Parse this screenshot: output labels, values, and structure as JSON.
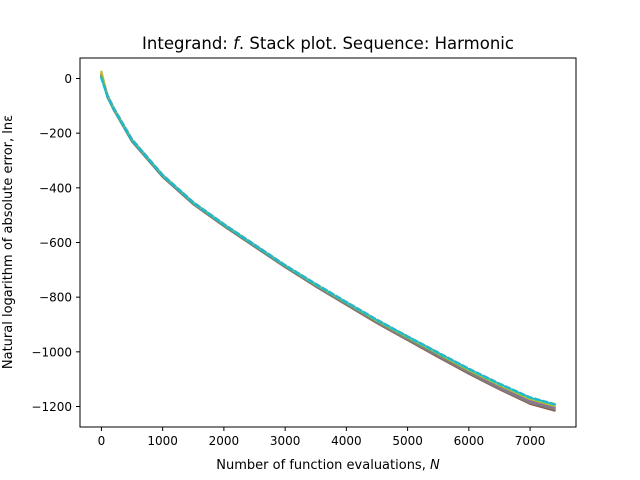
{
  "chart_data": {
    "type": "line",
    "title": "Integrand: f. Stack plot. Sequence: Harmonic",
    "title_parts": [
      "Integrand: ",
      "f",
      ". Stack plot. Sequence: Harmonic"
    ],
    "xlabel": "Number of function evaluations, ",
    "xlabel_var": "N",
    "ylabel": "Natural logarithm of absolute error, lnε",
    "xlim": [
      -350,
      7750
    ],
    "ylim": [
      -1275,
      75
    ],
    "xticks": [
      0,
      1000,
      2000,
      3000,
      4000,
      5000,
      6000,
      7000
    ],
    "yticks": [
      0,
      -200,
      -400,
      -600,
      -800,
      -1000,
      -1200
    ],
    "xtick_labels": [
      "0",
      "1000",
      "2000",
      "3000",
      "4000",
      "5000",
      "6000",
      "7000"
    ],
    "ytick_labels": [
      "0",
      "−200",
      "−400",
      "−600",
      "−800",
      "−1000",
      "−1200"
    ],
    "grid": false,
    "legend": "none",
    "x": [
      0,
      100,
      200,
      500,
      1000,
      1500,
      2000,
      2500,
      3000,
      3500,
      4000,
      4500,
      5000,
      5500,
      6000,
      6500,
      7000,
      7400
    ],
    "series": [
      {
        "color": "#1f77b4",
        "style": "dotted",
        "values": [
          5,
          -65,
          -110,
          -225,
          -355,
          -455,
          -535,
          -610,
          -685,
          -755,
          -820,
          -885,
          -945,
          -1005,
          -1065,
          -1120,
          -1170,
          -1195
        ]
      },
      {
        "color": "#ff7f0e",
        "style": "solid",
        "values": [
          20,
          -68,
          -112,
          -228,
          -358,
          -458,
          -538,
          -613,
          -688,
          -759,
          -826,
          -892,
          -953,
          -1014,
          -1074,
          -1130,
          -1182,
          -1207
        ]
      },
      {
        "color": "#2ca02c",
        "style": "solid",
        "values": [
          8,
          -66,
          -111,
          -226,
          -357,
          -457,
          -537,
          -612,
          -687,
          -757,
          -823,
          -889,
          -950,
          -1010,
          -1070,
          -1126,
          -1178,
          -1203
        ]
      },
      {
        "color": "#d62728",
        "style": "solid",
        "values": [
          15,
          -68,
          -113,
          -229,
          -359,
          -459,
          -539,
          -614,
          -689,
          -760,
          -827,
          -894,
          -956,
          -1017,
          -1078,
          -1135,
          -1187,
          -1212
        ]
      },
      {
        "color": "#9467bd",
        "style": "solid",
        "values": [
          12,
          -67,
          -112,
          -227,
          -358,
          -458,
          -538,
          -613,
          -688,
          -758,
          -825,
          -891,
          -952,
          -1013,
          -1073,
          -1129,
          -1181,
          -1205
        ]
      },
      {
        "color": "#8c564b",
        "style": "solid",
        "values": [
          10,
          -69,
          -114,
          -230,
          -360,
          -460,
          -540,
          -615,
          -690,
          -761,
          -828,
          -895,
          -957,
          -1019,
          -1080,
          -1137,
          -1190,
          -1215
        ]
      },
      {
        "color": "#7f7f7f",
        "style": "solid",
        "values": [
          6,
          -68,
          -113,
          -229,
          -359,
          -459,
          -539,
          -614,
          -689,
          -760,
          -827,
          -893,
          -955,
          -1016,
          -1077,
          -1134,
          -1186,
          -1210
        ]
      },
      {
        "color": "#bcbd22",
        "style": "solid",
        "values": [
          25,
          -64,
          -109,
          -224,
          -354,
          -454,
          -534,
          -609,
          -684,
          -754,
          -820,
          -886,
          -947,
          -1007,
          -1067,
          -1122,
          -1173,
          -1198
        ]
      },
      {
        "color": "#17becf",
        "style": "dashed",
        "values": [
          3,
          -63,
          -108,
          -223,
          -353,
          -453,
          -533,
          -608,
          -683,
          -752,
          -818,
          -883,
          -944,
          -1003,
          -1062,
          -1117,
          -1167,
          -1192
        ]
      }
    ]
  }
}
